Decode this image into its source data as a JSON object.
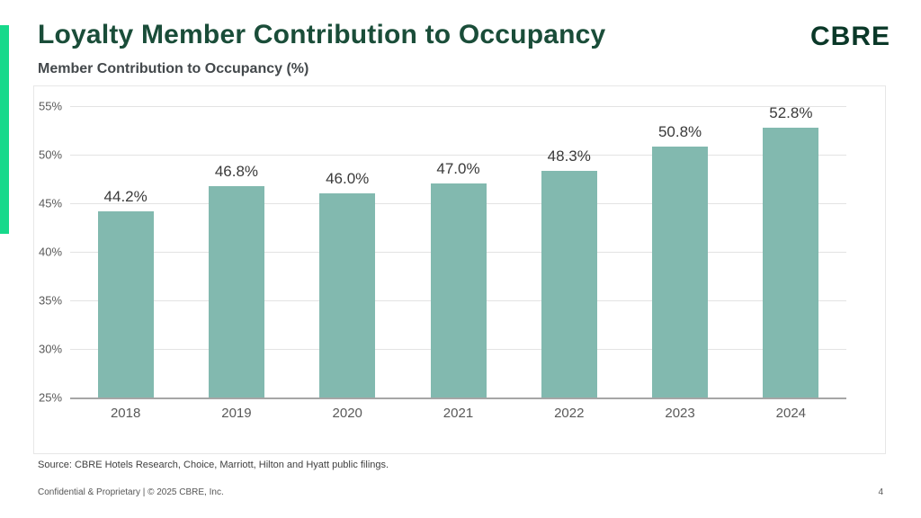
{
  "slide": {
    "title": "Loyalty Member Contribution to Occupancy",
    "logo_text": "CBRE",
    "chart_heading": "Member Contribution to Occupancy (%)",
    "source_note": "Source: CBRE Hotels Research, Choice, Marriott, Hilton and Hyatt public filings.",
    "footer_left": "Confidential & Proprietary | © 2025 CBRE, Inc.",
    "page_number": "4"
  },
  "colors": {
    "accent_green": "#17D98B",
    "title_green": "#1A4D39",
    "logo_green": "#0A3828",
    "bar_fill": "#82B9AF",
    "grid_line": "#E3E3E3",
    "axis_line": "#A6A6A6",
    "tick_text": "#595959",
    "data_label_text": "#3A3A3A",
    "chart_border": "#E7E7E7"
  },
  "chart_data": {
    "type": "bar",
    "title": "Member Contribution to Occupancy (%)",
    "categories": [
      "2018",
      "2019",
      "2020",
      "2021",
      "2022",
      "2023",
      "2024"
    ],
    "values": [
      44.2,
      46.8,
      46.0,
      47.0,
      48.3,
      50.8,
      52.8
    ],
    "value_labels": [
      "44.2%",
      "46.8%",
      "46.0%",
      "47.0%",
      "48.3%",
      "50.8%",
      "52.8%"
    ],
    "xlabel": "",
    "ylabel": "Member Contribution to Occupancy (%)",
    "ylim": [
      25,
      55
    ],
    "ytick_step": 5,
    "ytick_labels": [
      "25%",
      "30%",
      "35%",
      "40%",
      "45%",
      "50%",
      "55%"
    ],
    "grid": true,
    "legend_position": "none",
    "bar_color": "#82B9AF"
  }
}
